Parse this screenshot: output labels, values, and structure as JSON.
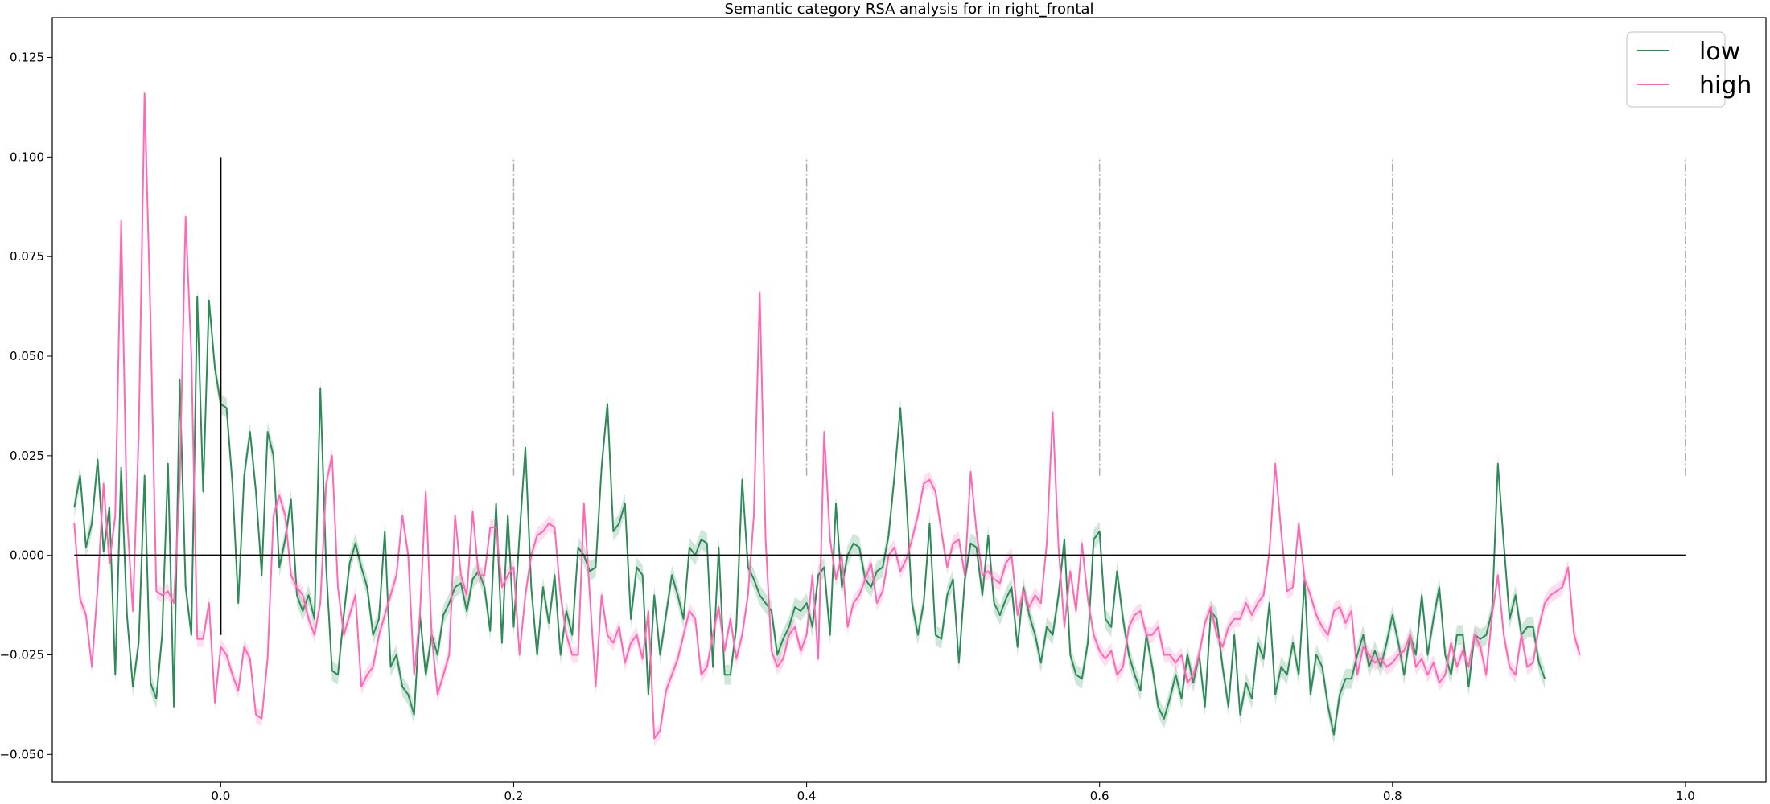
{
  "chart_data": {
    "type": "line",
    "title": "Semantic category RSA analysis for in right_frontal",
    "xlabel": "",
    "ylabel": "",
    "xlim": [
      -0.115,
      1.055
    ],
    "ylim": [
      -0.057,
      0.135
    ],
    "xticks": [
      0.0,
      0.2,
      0.4,
      0.6,
      0.8,
      1.0
    ],
    "xtick_labels": [
      "0.0",
      "0.2",
      "0.4",
      "0.6",
      "0.8",
      "1.0"
    ],
    "yticks": [
      -0.05,
      -0.025,
      0.0,
      0.025,
      0.05,
      0.075,
      0.1,
      0.125
    ],
    "ytick_labels": [
      "−0.050",
      "−0.025",
      "0.000",
      "0.025",
      "0.050",
      "0.075",
      "0.100",
      "0.125"
    ],
    "grid": false,
    "legend_position": "top-right",
    "reference_lines": {
      "zero_line": {
        "y": 0.0,
        "x_from": -0.1,
        "x_to": 1.0,
        "color": "#000000"
      },
      "onset_line": {
        "x": 0.0,
        "y_from": -0.02,
        "y_to": 0.1,
        "color": "#000000"
      },
      "dashdot_lines": {
        "x": [
          0.2,
          0.4,
          0.6,
          0.8,
          1.0
        ],
        "y_from": 0.02,
        "y_to": 0.1,
        "color": "#aaaaaa"
      }
    },
    "series": [
      {
        "name": "low",
        "color": "#2e8b57",
        "band_color": "#2e8b57",
        "band_width": 0.0025,
        "x_start": -0.1,
        "x_step": 0.004,
        "values": [
          0.012,
          0.02,
          0.002,
          0.008,
          0.024,
          0.001,
          0.012,
          -0.03,
          0.022,
          -0.015,
          -0.033,
          -0.022,
          0.02,
          -0.032,
          -0.036,
          -0.02,
          0.023,
          -0.038,
          0.044,
          -0.008,
          -0.02,
          0.065,
          0.016,
          0.064,
          0.047,
          0.038,
          0.037,
          0.018,
          -0.012,
          0.02,
          0.031,
          0.016,
          -0.005,
          0.031,
          0.025,
          -0.003,
          0.004,
          0.014,
          -0.01,
          -0.014,
          -0.01,
          -0.016,
          0.042,
          -0.003,
          -0.029,
          -0.03,
          -0.015,
          -0.002,
          0.003,
          -0.003,
          -0.008,
          -0.02,
          -0.016,
          0.006,
          -0.028,
          -0.025,
          -0.033,
          -0.035,
          -0.04,
          -0.015,
          -0.03,
          -0.02,
          -0.025,
          -0.015,
          -0.012,
          -0.008,
          -0.007,
          -0.014,
          -0.006,
          -0.004,
          -0.008,
          -0.019,
          0.013,
          -0.022,
          0.01,
          -0.018,
          0.005,
          0.027,
          -0.008,
          -0.025,
          -0.008,
          -0.017,
          -0.005,
          -0.025,
          -0.014,
          -0.02,
          0.002,
          0.0,
          -0.004,
          -0.003,
          0.022,
          0.038,
          0.006,
          0.008,
          0.013,
          -0.016,
          -0.003,
          -0.005,
          -0.035,
          -0.01,
          -0.025,
          -0.015,
          -0.005,
          -0.01,
          -0.016,
          0.002,
          0.0,
          0.004,
          0.003,
          -0.028,
          0.002,
          -0.03,
          -0.03,
          -0.018,
          0.019,
          -0.003,
          -0.006,
          -0.01,
          -0.012,
          -0.014,
          -0.025,
          -0.021,
          -0.018,
          -0.013,
          -0.014,
          -0.012,
          -0.018,
          -0.005,
          -0.003,
          -0.02,
          0.013,
          -0.008,
          0.0,
          0.003,
          0.002,
          -0.006,
          -0.008,
          -0.004,
          -0.003,
          0.005,
          0.02,
          0.037,
          0.015,
          -0.012,
          -0.02,
          -0.012,
          0.008,
          -0.02,
          -0.021,
          -0.01,
          -0.006,
          -0.027,
          -0.006,
          0.003,
          0.002,
          -0.01,
          0.005,
          -0.012,
          -0.015,
          -0.011,
          -0.008,
          -0.023,
          -0.008,
          -0.015,
          -0.02,
          -0.027,
          -0.018,
          -0.02,
          -0.01,
          0.004,
          -0.025,
          -0.03,
          -0.031,
          -0.022,
          0.004,
          0.006,
          -0.016,
          -0.018,
          -0.004,
          -0.016,
          -0.025,
          -0.03,
          -0.034,
          -0.02,
          -0.028,
          -0.038,
          -0.041,
          -0.036,
          -0.03,
          -0.036,
          -0.025,
          -0.032,
          -0.025,
          -0.038,
          -0.014,
          -0.016,
          -0.028,
          -0.038,
          -0.02,
          -0.04,
          -0.032,
          -0.036,
          -0.022,
          -0.026,
          -0.012,
          -0.035,
          -0.028,
          -0.03,
          -0.022,
          -0.03,
          -0.006,
          -0.035,
          -0.025,
          -0.028,
          -0.038,
          -0.045,
          -0.035,
          -0.031,
          -0.031,
          -0.025,
          -0.02,
          -0.028,
          -0.024,
          -0.028,
          -0.022,
          -0.015,
          -0.022,
          -0.03,
          -0.02,
          -0.025,
          -0.01,
          -0.025,
          -0.016,
          -0.008,
          -0.025,
          -0.03,
          -0.02,
          -0.02,
          -0.033,
          -0.02,
          -0.021,
          -0.02,
          -0.014,
          0.023,
          0.003,
          -0.016,
          -0.01,
          -0.02,
          -0.018,
          -0.018,
          -0.027,
          -0.031
        ]
      },
      {
        "name": "high",
        "color": "#ff69b4",
        "band_color": "#ff69b4",
        "band_width": 0.002,
        "x_start": -0.1,
        "x_step": 0.004,
        "values": [
          0.008,
          -0.011,
          -0.015,
          -0.028,
          -0.008,
          0.018,
          -0.002,
          0.01,
          0.084,
          0.01,
          -0.014,
          0.03,
          0.116,
          0.06,
          -0.009,
          -0.01,
          -0.009,
          -0.012,
          0.018,
          0.085,
          0.05,
          -0.021,
          -0.021,
          -0.012,
          -0.037,
          -0.023,
          -0.025,
          -0.03,
          -0.034,
          -0.023,
          -0.026,
          -0.04,
          -0.041,
          -0.026,
          0.01,
          0.015,
          0.01,
          -0.005,
          -0.008,
          -0.01,
          -0.016,
          -0.02,
          -0.012,
          0.018,
          0.025,
          -0.008,
          -0.02,
          -0.015,
          -0.01,
          -0.033,
          -0.03,
          -0.028,
          -0.02,
          -0.015,
          -0.01,
          -0.005,
          0.01,
          0.0,
          -0.03,
          -0.015,
          0.016,
          -0.02,
          -0.035,
          -0.03,
          -0.025,
          0.01,
          -0.005,
          -0.01,
          0.011,
          -0.005,
          -0.005,
          0.007,
          0.007,
          -0.008,
          -0.005,
          -0.003,
          -0.025,
          -0.01,
          0.0,
          0.005,
          0.006,
          0.008,
          0.007,
          -0.01,
          -0.02,
          -0.025,
          -0.025,
          0.013,
          -0.01,
          -0.033,
          -0.01,
          -0.02,
          -0.022,
          -0.018,
          -0.027,
          -0.022,
          -0.02,
          -0.026,
          -0.014,
          -0.046,
          -0.044,
          -0.034,
          -0.03,
          -0.026,
          -0.02,
          -0.014,
          -0.016,
          -0.03,
          -0.028,
          -0.02,
          -0.013,
          -0.024,
          -0.016,
          -0.026,
          -0.02,
          -0.01,
          0.01,
          0.066,
          0.004,
          -0.024,
          -0.028,
          -0.026,
          -0.02,
          -0.018,
          -0.024,
          -0.02,
          -0.005,
          -0.026,
          0.031,
          0.004,
          -0.006,
          0.0,
          -0.018,
          -0.012,
          -0.01,
          -0.006,
          -0.002,
          -0.012,
          -0.009,
          0.0,
          0.002,
          -0.004,
          -0.001,
          0.004,
          0.01,
          0.018,
          0.019,
          0.016,
          0.006,
          -0.003,
          0.003,
          0.004,
          -0.005,
          0.021,
          0.006,
          -0.005,
          -0.004,
          -0.006,
          -0.007,
          -0.002,
          0.0,
          -0.015,
          -0.009,
          -0.013,
          -0.01,
          -0.012,
          0.003,
          0.036,
          0.002,
          -0.018,
          -0.004,
          -0.014,
          0.003,
          -0.011,
          -0.02,
          -0.024,
          -0.026,
          -0.024,
          -0.03,
          -0.028,
          -0.018,
          -0.015,
          -0.014,
          -0.02,
          -0.02,
          -0.018,
          -0.025,
          -0.025,
          -0.027,
          -0.025,
          -0.032,
          -0.03,
          -0.025,
          -0.017,
          -0.013,
          -0.02,
          -0.023,
          -0.018,
          -0.016,
          -0.016,
          -0.012,
          -0.015,
          -0.012,
          -0.01,
          0.001,
          0.023,
          0.006,
          -0.009,
          -0.008,
          0.008,
          -0.006,
          -0.01,
          -0.015,
          -0.018,
          -0.02,
          -0.014,
          -0.013,
          -0.017,
          -0.014,
          -0.03,
          -0.023,
          -0.025,
          -0.027,
          -0.026,
          -0.028,
          -0.027,
          -0.025,
          -0.024,
          -0.02,
          -0.028,
          -0.026,
          -0.03,
          -0.027,
          -0.032,
          -0.03,
          -0.022,
          -0.028,
          -0.024,
          -0.028,
          -0.02,
          -0.023,
          -0.03,
          -0.015,
          -0.005,
          -0.02,
          -0.028,
          -0.03,
          -0.02,
          -0.028,
          -0.027,
          -0.018,
          -0.012,
          -0.01,
          -0.009,
          -0.008,
          -0.003,
          -0.02,
          -0.025
        ]
      }
    ]
  }
}
